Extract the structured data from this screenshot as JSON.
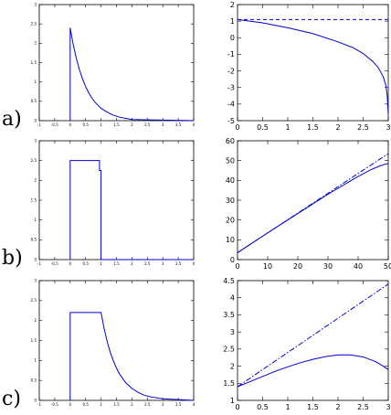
{
  "row_labels": [
    "a)",
    "b)",
    "c)"
  ],
  "colors": {
    "curve": "#0000cc",
    "axis": "#000000"
  },
  "chart_data": [
    {
      "type": "line",
      "panel": "a-left",
      "xlim": [
        -1,
        4
      ],
      "ylim": [
        0,
        3
      ],
      "xticks": [
        -1,
        -0.5,
        0,
        0.5,
        1,
        1.5,
        2,
        2.5,
        3,
        3.5,
        4
      ],
      "xtick_labels": [
        "-1",
        "-0.5",
        "0",
        "0.5",
        "1",
        "1.5",
        "2",
        "2.5",
        "3",
        "3.5",
        "4"
      ],
      "yticks": [
        0,
        0.5,
        1,
        1.5,
        2,
        2.5,
        3
      ],
      "ytick_labels": [
        "0",
        "0.5",
        "1",
        "1.5",
        "2",
        "2.5",
        "3"
      ],
      "series": [
        {
          "style": "solid",
          "x": [
            0,
            0,
            0.1,
            0.2,
            0.3,
            0.4,
            0.5,
            0.6,
            0.7,
            0.8,
            1.0,
            1.2,
            1.4,
            1.6,
            1.8,
            2.0,
            4.0
          ],
          "y": [
            0,
            2.4,
            1.96,
            1.61,
            1.32,
            1.08,
            0.88,
            0.72,
            0.59,
            0.48,
            0.32,
            0.22,
            0.14,
            0.09,
            0.06,
            0.03,
            0
          ]
        }
      ]
    },
    {
      "type": "line",
      "panel": "a-right",
      "xlim": [
        0,
        3
      ],
      "ylim": [
        -5,
        2
      ],
      "xticks": [
        0,
        0.5,
        1,
        1.5,
        2,
        2.5,
        3
      ],
      "xtick_labels": [
        "0",
        "0.5",
        "1",
        "1.5",
        "2",
        "2.5",
        "3"
      ],
      "yticks": [
        -5,
        -4,
        -3,
        -2,
        -1,
        0,
        1,
        2
      ],
      "ytick_labels": [
        "-5",
        "-4",
        "-3",
        "-2",
        "-1",
        "0",
        "1",
        "2"
      ],
      "series": [
        {
          "style": "dashed",
          "x": [
            0,
            3
          ],
          "y": [
            1.1,
            1.1
          ]
        },
        {
          "style": "solid",
          "x": [
            0,
            0.5,
            1,
            1.5,
            2,
            2.3,
            2.5,
            2.7,
            2.8,
            2.9,
            2.95,
            2.98,
            3
          ],
          "y": [
            1.1,
            0.9,
            0.6,
            0.25,
            -0.25,
            -0.6,
            -0.95,
            -1.45,
            -1.8,
            -2.35,
            -2.85,
            -3.5,
            -4.6
          ]
        }
      ]
    },
    {
      "type": "line",
      "panel": "b-left",
      "xlim": [
        -1,
        4
      ],
      "ylim": [
        0,
        3
      ],
      "xticks": [
        -1,
        -0.5,
        0,
        0.5,
        1,
        1.5,
        2,
        2.5,
        3,
        3.5,
        4
      ],
      "xtick_labels": [
        "-1",
        "-0.5",
        "0",
        "0.5",
        "1",
        "1.5",
        "2",
        "2.5",
        "3",
        "3.5",
        "4"
      ],
      "yticks": [
        0,
        0.5,
        1,
        1.5,
        2,
        2.5,
        3
      ],
      "ytick_labels": [
        "0",
        "0.5",
        "1",
        "1.5",
        "2",
        "2.5",
        "3"
      ],
      "series": [
        {
          "style": "solid",
          "x": [
            0,
            0,
            0.95,
            0.95,
            1.0,
            1.0,
            4.0
          ],
          "y": [
            0,
            2.5,
            2.5,
            2.25,
            2.25,
            0,
            0
          ]
        }
      ]
    },
    {
      "type": "line",
      "panel": "b-right",
      "xlim": [
        0,
        50
      ],
      "ylim": [
        0,
        60
      ],
      "xticks": [
        0,
        10,
        20,
        30,
        40,
        50
      ],
      "xtick_labels": [
        "0",
        "10",
        "20",
        "30",
        "40",
        "50"
      ],
      "yticks": [
        0,
        10,
        20,
        30,
        40,
        50,
        60
      ],
      "ytick_labels": [
        "0",
        "10",
        "20",
        "30",
        "40",
        "50",
        "60"
      ],
      "series": [
        {
          "style": "dashdot",
          "x": [
            0,
            50
          ],
          "y": [
            3.5,
            53.5
          ]
        },
        {
          "style": "solid",
          "x": [
            0,
            10,
            20,
            30,
            35,
            40,
            44,
            47,
            49,
            50
          ],
          "y": [
            3.5,
            13.5,
            23.3,
            33,
            37.5,
            42,
            45.2,
            47.2,
            48.2,
            48.5
          ]
        }
      ]
    },
    {
      "type": "line",
      "panel": "c-left",
      "xlim": [
        -1,
        4
      ],
      "ylim": [
        0,
        3
      ],
      "xticks": [
        -1,
        -0.5,
        0,
        0.5,
        1,
        1.5,
        2,
        2.5,
        3,
        3.5,
        4
      ],
      "xtick_labels": [
        "-1",
        "-0.5",
        "0",
        "0.5",
        "1",
        "1.5",
        "2",
        "2.5",
        "3",
        "3.5",
        "4"
      ],
      "yticks": [
        0,
        0.5,
        1,
        1.5,
        2,
        2.5,
        3
      ],
      "ytick_labels": [
        "0",
        "0.5",
        "1",
        "1.5",
        "2",
        "2.5",
        "3"
      ],
      "series": [
        {
          "style": "solid",
          "x": [
            0,
            0,
            1.0,
            1.1,
            1.2,
            1.3,
            1.4,
            1.5,
            1.6,
            1.8,
            2.0,
            2.2,
            2.4,
            2.6,
            3.0,
            4.0
          ],
          "y": [
            0,
            2.2,
            2.2,
            1.8,
            1.47,
            1.2,
            0.99,
            0.81,
            0.66,
            0.44,
            0.3,
            0.2,
            0.13,
            0.09,
            0.04,
            0
          ]
        }
      ]
    },
    {
      "type": "line",
      "panel": "c-right",
      "xlim": [
        0,
        3
      ],
      "ylim": [
        1,
        4.5
      ],
      "xticks": [
        0,
        0.5,
        1,
        1.5,
        2,
        2.5,
        3
      ],
      "xtick_labels": [
        "0",
        "0.5",
        "1",
        "1.5",
        "2",
        "2.5",
        "3"
      ],
      "yticks": [
        1,
        1.5,
        2,
        2.5,
        3,
        3.5,
        4,
        4.5
      ],
      "ytick_labels": [
        "1",
        "1.5",
        "2",
        "2.5",
        "3",
        "3.5",
        "4",
        "4.5"
      ],
      "series": [
        {
          "style": "dashdot",
          "x": [
            0,
            3
          ],
          "y": [
            1.4,
            4.4
          ]
        },
        {
          "style": "solid",
          "x": [
            0,
            0.25,
            0.5,
            0.75,
            1,
            1.25,
            1.5,
            1.75,
            2,
            2.25,
            2.5,
            2.75,
            2.9,
            3
          ],
          "y": [
            1.4,
            1.55,
            1.7,
            1.85,
            1.98,
            2.1,
            2.2,
            2.28,
            2.33,
            2.33,
            2.27,
            2.13,
            2.0,
            1.9
          ]
        }
      ]
    }
  ]
}
